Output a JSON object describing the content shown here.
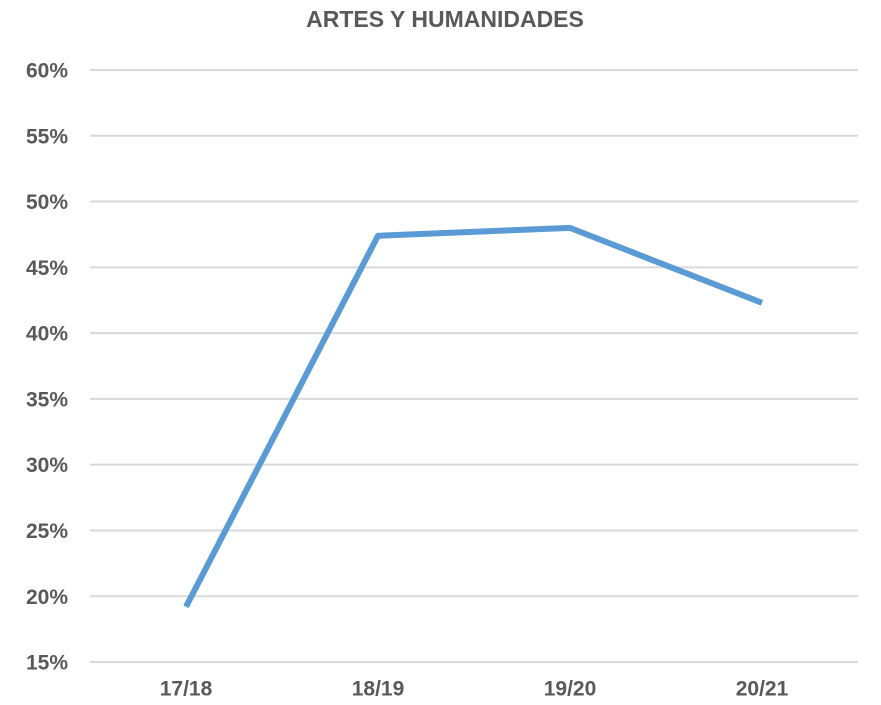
{
  "chart_data": {
    "type": "line",
    "title": "ARTES Y HUMANIDADES",
    "categories": [
      "17/18",
      "18/19",
      "19/20",
      "20/21"
    ],
    "series": [
      {
        "name": "Artes y Humanidades",
        "color": "#5b9bd5",
        "values": [
          19.2,
          47.4,
          48.0,
          42.3
        ]
      }
    ],
    "ylim": [
      15,
      60
    ],
    "yticks": [
      {
        "value": 15,
        "label": "15%"
      },
      {
        "value": 20,
        "label": "20%"
      },
      {
        "value": 25,
        "label": "25%"
      },
      {
        "value": 30,
        "label": "30%"
      },
      {
        "value": 35,
        "label": "35%"
      },
      {
        "value": 40,
        "label": "40%"
      },
      {
        "value": 45,
        "label": "45%"
      },
      {
        "value": 50,
        "label": "50%"
      },
      {
        "value": 55,
        "label": "55%"
      },
      {
        "value": 60,
        "label": "60%"
      }
    ],
    "grid": true
  }
}
